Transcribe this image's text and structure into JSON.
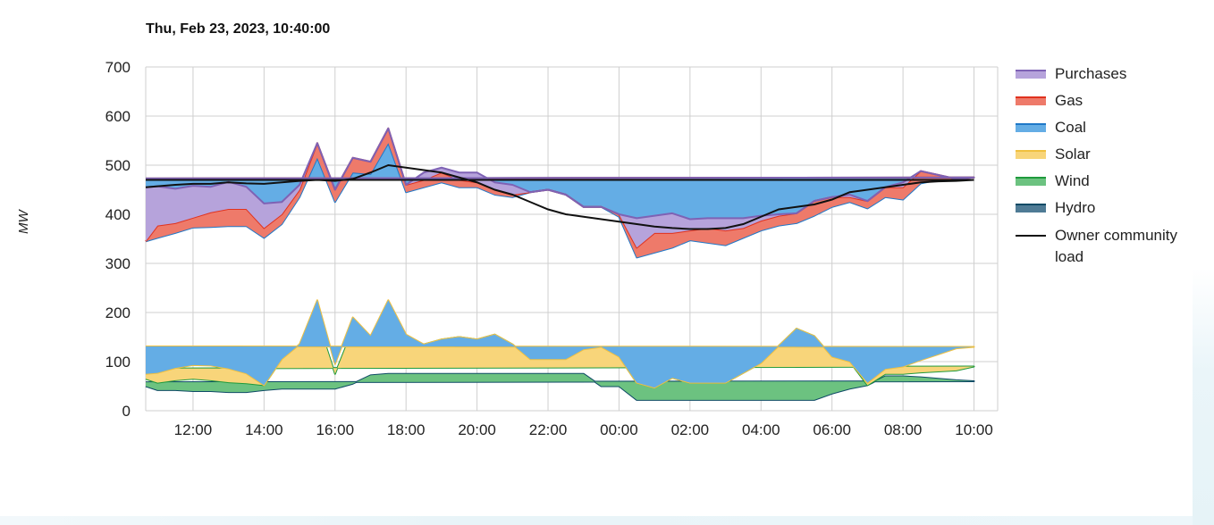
{
  "chart_data": {
    "type": "area",
    "title": "Thu, Feb 23, 2023, 10:40:00",
    "ylabel": "MW",
    "ylim": [
      0,
      700
    ],
    "yticks": [
      0,
      100,
      200,
      300,
      400,
      500,
      600,
      700
    ],
    "xlim": [
      "2023-02-22 10:40",
      "2023-02-23 10:40"
    ],
    "x_tick_labels": [
      "12:00",
      "14:00",
      "16:00",
      "18:00",
      "20:00",
      "22:00",
      "00:00",
      "02:00",
      "04:00",
      "06:00",
      "08:00",
      "10:00"
    ],
    "grid": true,
    "legend_position": "right",
    "stacked": true,
    "x": [
      "10:40",
      "11:00",
      "11:30",
      "12:00",
      "12:30",
      "13:00",
      "13:30",
      "14:00",
      "14:30",
      "15:00",
      "15:30",
      "16:00",
      "16:30",
      "17:00",
      "17:30",
      "18:00",
      "18:30",
      "19:00",
      "19:30",
      "20:00",
      "20:30",
      "21:00",
      "21:30",
      "22:00",
      "22:30",
      "23:00",
      "23:30",
      "00:00",
      "00:30",
      "01:00",
      "01:30",
      "02:00",
      "02:30",
      "03:00",
      "03:30",
      "04:00",
      "04:30",
      "05:00",
      "05:30",
      "06:00",
      "06:30",
      "07:00",
      "07:30",
      "08:00",
      "08:30",
      "09:00",
      "09:30",
      "10:00",
      "10:40"
    ],
    "series": [
      {
        "name": "Hydro",
        "color": "#4f7b95",
        "line": "#0e4a66",
        "values": [
          50,
          42,
          42,
          40,
          40,
          38,
          38,
          42,
          45,
          45,
          45,
          45,
          55,
          72,
          75,
          75,
          75,
          75,
          75,
          75,
          75,
          75,
          75,
          75,
          75,
          75,
          50,
          50,
          22,
          22,
          22,
          22,
          22,
          22,
          22,
          22,
          22,
          22,
          22,
          35,
          45,
          52,
          70,
          70,
          68,
          65,
          62,
          60,
          58
        ]
      },
      {
        "name": "Wind",
        "color": "#6cc280",
        "line": "#1f9a3c",
        "values": [
          15,
          15,
          20,
          25,
          22,
          20,
          18,
          10,
          60,
          90,
          140,
          30,
          110,
          80,
          130,
          75,
          60,
          70,
          75,
          70,
          80,
          60,
          30,
          30,
          30,
          50,
          80,
          60,
          35,
          25,
          45,
          35,
          35,
          35,
          55,
          75,
          110,
          145,
          130,
          75,
          55,
          0,
          5,
          5,
          10,
          15,
          20,
          30,
          28
        ]
      },
      {
        "name": "Solar",
        "color": "#f8d57a",
        "line": "#f0c040",
        "values": [
          10,
          20,
          25,
          28,
          30,
          28,
          20,
          0,
          0,
          0,
          40,
          20,
          25,
          0,
          20,
          5,
          0,
          0,
          0,
          0,
          0,
          0,
          0,
          0,
          0,
          0,
          0,
          0,
          0,
          0,
          0,
          0,
          0,
          0,
          0,
          0,
          0,
          0,
          0,
          0,
          0,
          5,
          10,
          15,
          25,
          35,
          45,
          40,
          45
        ]
      },
      {
        "name": "Coal",
        "color": "#64ade5",
        "line": "#1f78c8",
        "values": [
          270,
          275,
          275,
          280,
          282,
          290,
          300,
          300,
          275,
          300,
          290,
          330,
          295,
          330,
          320,
          290,
          320,
          320,
          305,
          310,
          285,
          300,
          340,
          345,
          335,
          290,
          285,
          285,
          255,
          275,
          265,
          290,
          285,
          280,
          275,
          270,
          245,
          215,
          245,
          305,
          325,
          355,
          350,
          340,
          360,
          355,
          345,
          345,
          342
        ]
      },
      {
        "name": "Gas",
        "color": "#ee7a6a",
        "line": "#e0321e",
        "values": [
          0,
          25,
          20,
          20,
          30,
          35,
          35,
          20,
          20,
          15,
          30,
          25,
          30,
          25,
          30,
          15,
          15,
          20,
          15,
          10,
          10,
          5,
          0,
          0,
          0,
          0,
          0,
          5,
          20,
          40,
          30,
          20,
          30,
          30,
          20,
          20,
          20,
          20,
          30,
          20,
          10,
          15,
          20,
          25,
          25,
          10,
          0,
          0,
          0
        ]
      },
      {
        "name": "Purchases",
        "color": "#b6a3db",
        "line": "#7e62b4",
        "values": [
          110,
          80,
          70,
          65,
          52,
          55,
          45,
          50,
          25,
          10,
          0,
          0,
          0,
          0,
          0,
          0,
          15,
          10,
          15,
          20,
          15,
          20,
          0,
          0,
          0,
          0,
          0,
          0,
          60,
          35,
          40,
          23,
          20,
          25,
          20,
          10,
          3,
          0,
          0,
          0,
          5,
          0,
          0,
          10,
          0,
          0,
          0,
          0,
          0
        ]
      }
    ],
    "line_series": {
      "name": "Owner community load",
      "color": "#111111",
      "values": [
        455,
        457,
        460,
        462,
        462,
        465,
        463,
        462,
        465,
        468,
        470,
        468,
        472,
        485,
        500,
        495,
        490,
        485,
        475,
        465,
        450,
        440,
        425,
        410,
        400,
        395,
        390,
        385,
        380,
        375,
        372,
        370,
        370,
        372,
        380,
        395,
        410,
        415,
        420,
        430,
        445,
        450,
        455,
        460,
        465,
        467,
        468,
        470,
        470
      ]
    }
  }
}
